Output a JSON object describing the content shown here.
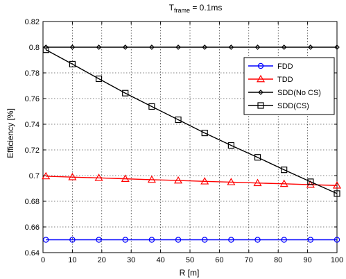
{
  "chart_data": {
    "type": "line",
    "title_prefix": "T",
    "title_subscript": "frame",
    "title_suffix": " = 0.1ms",
    "xlabel": "R [m]",
    "ylabel": "Efficiency [%]",
    "xlim": [
      0,
      100
    ],
    "ylim": [
      0.64,
      0.82
    ],
    "xticks": [
      0,
      10,
      20,
      30,
      40,
      50,
      60,
      70,
      80,
      90,
      100
    ],
    "yticks": [
      0.64,
      0.66,
      0.68,
      0.7,
      0.72,
      0.74,
      0.76,
      0.78,
      0.8,
      0.82
    ],
    "xtick_labels": [
      "0",
      "10",
      "20",
      "30",
      "40",
      "50",
      "60",
      "70",
      "80",
      "90",
      "100"
    ],
    "ytick_labels": [
      "0.64",
      "0.66",
      "0.68",
      "0.7",
      "0.72",
      "0.74",
      "0.76",
      "0.78",
      "0.8",
      "0.82"
    ],
    "grid": true,
    "legend_position": "top-right",
    "x": [
      1,
      10,
      19,
      28,
      37,
      46,
      55,
      64,
      73,
      82,
      91,
      100
    ],
    "series": [
      {
        "name": "FDD",
        "color": "#0000ff",
        "marker": "circle",
        "values": [
          0.65,
          0.65,
          0.65,
          0.65,
          0.65,
          0.65,
          0.65,
          0.65,
          0.65,
          0.65,
          0.65,
          0.65
        ]
      },
      {
        "name": "TDD",
        "color": "#ff0000",
        "marker": "triangle",
        "values": [
          0.6995,
          0.6988,
          0.6982,
          0.6975,
          0.6968,
          0.6962,
          0.6955,
          0.6949,
          0.6942,
          0.6936,
          0.6929,
          0.6923
        ]
      },
      {
        "name": "SDD(No CS)",
        "color": "#000000",
        "marker": "diamond",
        "x": [
          1,
          10,
          19,
          28,
          37,
          46,
          55,
          64,
          73,
          82,
          91,
          100
        ],
        "values": [
          0.8,
          0.8,
          0.8,
          0.8,
          0.8,
          0.8,
          0.8,
          0.8,
          0.8,
          0.8,
          0.8,
          0.8
        ]
      },
      {
        "name": "SDD(CS)",
        "color": "#000000",
        "marker": "square",
        "values": [
          0.798,
          0.7868,
          0.7754,
          0.7642,
          0.7538,
          0.7435,
          0.7332,
          0.7235,
          0.7142,
          0.7045,
          0.6952,
          0.686
        ]
      }
    ]
  }
}
